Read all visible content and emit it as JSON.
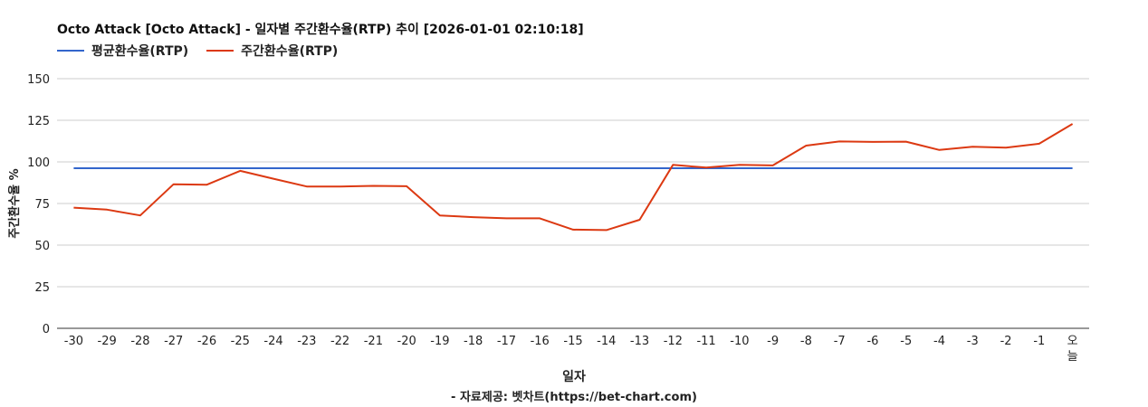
{
  "header": {
    "title": "Octo Attack [Octo Attack] - 일자별 주간환수율(RTP) 추이 [2026-01-01 02:10:18]"
  },
  "footer": {
    "credit": "- 자료제공: 벳차트(https://bet-chart.com)"
  },
  "chart_data": {
    "type": "line",
    "title": "Octo Attack [Octo Attack] - 일자별 주간환수율(RTP) 추이 [2026-01-01 02:10:18]",
    "xlabel": "일자",
    "ylabel": "주간환수율 %",
    "ylim": [
      0,
      150
    ],
    "yticks": [
      0,
      25,
      50,
      75,
      100,
      125,
      150
    ],
    "grid": true,
    "legend": "top-left",
    "categories": [
      "-30",
      "-29",
      "-28",
      "-27",
      "-26",
      "-25",
      "-24",
      "-23",
      "-22",
      "-21",
      "-20",
      "-19",
      "-18",
      "-17",
      "-16",
      "-15",
      "-14",
      "-13",
      "-12",
      "-11",
      "-10",
      "-9",
      "-8",
      "-7",
      "-6",
      "-5",
      "-4",
      "-3",
      "-2",
      "-1",
      "오늘"
    ],
    "series": [
      {
        "name": "평균환수율(RTP)",
        "color": "#3366cc",
        "values": [
          96.2,
          96.2,
          96.2,
          96.2,
          96.2,
          96.2,
          96.2,
          96.2,
          96.2,
          96.2,
          96.2,
          96.2,
          96.2,
          96.2,
          96.2,
          96.2,
          96.2,
          96.2,
          96.2,
          96.2,
          96.2,
          96.2,
          96.2,
          96.2,
          96.2,
          96.2,
          96.2,
          96.2,
          96.2,
          96.2,
          96.2
        ]
      },
      {
        "name": "주간환수율(RTP)",
        "color": "#dc3912",
        "values": [
          72.5,
          71.3,
          67.8,
          86.6,
          86.3,
          94.6,
          89.9,
          85.2,
          85.2,
          85.6,
          85.4,
          67.8,
          66.8,
          66.1,
          66.1,
          59.3,
          59.0,
          65.2,
          98.2,
          96.6,
          98.2,
          97.9,
          109.8,
          112.3,
          112.0,
          112.2,
          107.2,
          109.1,
          108.6,
          110.9,
          122.8
        ]
      }
    ]
  }
}
